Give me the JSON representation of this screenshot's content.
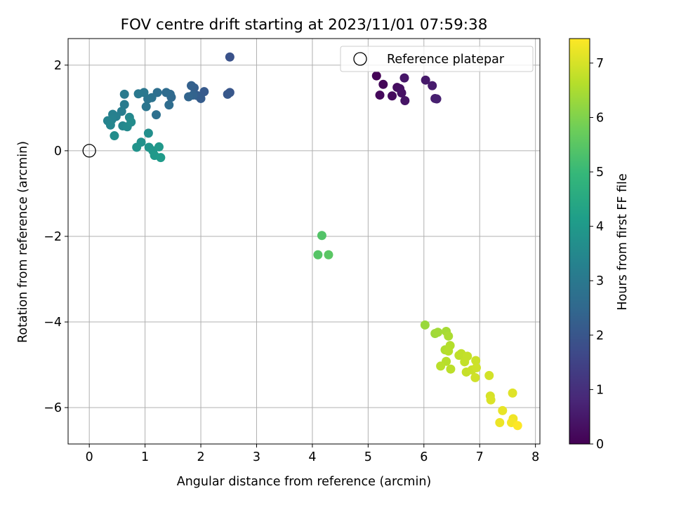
{
  "chart_data": {
    "type": "scatter",
    "title": "FOV centre drift starting at 2023/11/01 07:59:38",
    "xlabel": "Angular distance from reference (arcmin)",
    "ylabel": "Rotation from reference (arcmin)",
    "xlim": [
      -0.38,
      8.08
    ],
    "ylim": [
      -6.85,
      2.62
    ],
    "xticks": [
      0,
      1,
      2,
      3,
      4,
      5,
      6,
      7,
      8
    ],
    "yticks": [
      -6,
      -4,
      -2,
      0,
      2
    ],
    "grid": true,
    "legend": {
      "placement": "top-right",
      "entries": [
        "Reference platepar"
      ]
    },
    "reference_point": {
      "x": 0,
      "y": 0
    },
    "colorbar": {
      "label": "Hours from first FF file",
      "min": 0,
      "max": 7.45,
      "ticks": [
        0,
        1,
        2,
        3,
        4,
        5,
        6,
        7
      ],
      "colormap": [
        "#440154",
        "#482878",
        "#3e4989",
        "#31688e",
        "#26828e",
        "#1f9e89",
        "#35b779",
        "#6ece58",
        "#b5de2b",
        "#fde725"
      ]
    },
    "series": [
      {
        "points": [
          {
            "x": 5.15,
            "y": 1.75,
            "t": 0.05
          },
          {
            "x": 5.27,
            "y": 1.55,
            "t": 0.1
          },
          {
            "x": 5.21,
            "y": 1.3,
            "t": 0.15
          },
          {
            "x": 5.43,
            "y": 1.28,
            "t": 0.2
          },
          {
            "x": 5.52,
            "y": 1.48,
            "t": 0.25
          },
          {
            "x": 5.57,
            "y": 1.45,
            "t": 0.3
          },
          {
            "x": 5.6,
            "y": 1.35,
            "t": 0.35
          },
          {
            "x": 5.66,
            "y": 1.17,
            "t": 0.4
          },
          {
            "x": 5.65,
            "y": 1.7,
            "t": 0.45
          },
          {
            "x": 6.03,
            "y": 1.65,
            "t": 0.5
          },
          {
            "x": 6.15,
            "y": 1.52,
            "t": 0.55
          },
          {
            "x": 6.2,
            "y": 1.22,
            "t": 0.6
          },
          {
            "x": 6.23,
            "y": 1.21,
            "t": 0.65
          },
          {
            "x": 2.52,
            "y": 2.19,
            "t": 1.9
          },
          {
            "x": 2.52,
            "y": 1.36,
            "t": 2.0
          },
          {
            "x": 2.48,
            "y": 1.32,
            "t": 2.05
          },
          {
            "x": 2.06,
            "y": 1.38,
            "t": 2.1
          },
          {
            "x": 2.0,
            "y": 1.22,
            "t": 2.15
          },
          {
            "x": 1.93,
            "y": 1.29,
            "t": 2.2
          },
          {
            "x": 1.88,
            "y": 1.47,
            "t": 2.25
          },
          {
            "x": 1.83,
            "y": 1.52,
            "t": 2.3
          },
          {
            "x": 1.86,
            "y": 1.3,
            "t": 2.35
          },
          {
            "x": 1.78,
            "y": 1.26,
            "t": 2.4
          },
          {
            "x": 1.47,
            "y": 1.25,
            "t": 2.5
          },
          {
            "x": 1.45,
            "y": 1.32,
            "t": 2.55
          },
          {
            "x": 1.38,
            "y": 1.36,
            "t": 2.6
          },
          {
            "x": 1.43,
            "y": 1.07,
            "t": 2.65
          },
          {
            "x": 1.22,
            "y": 1.36,
            "t": 2.7
          },
          {
            "x": 1.2,
            "y": 0.84,
            "t": 2.75
          },
          {
            "x": 1.12,
            "y": 1.24,
            "t": 2.8
          },
          {
            "x": 1.05,
            "y": 1.21,
            "t": 2.85
          },
          {
            "x": 1.02,
            "y": 1.03,
            "t": 2.9
          },
          {
            "x": 0.98,
            "y": 1.36,
            "t": 2.95
          },
          {
            "x": 0.88,
            "y": 1.33,
            "t": 3.0
          },
          {
            "x": 0.63,
            "y": 1.32,
            "t": 3.05
          },
          {
            "x": 0.63,
            "y": 1.08,
            "t": 3.1
          },
          {
            "x": 0.58,
            "y": 0.92,
            "t": 3.15
          },
          {
            "x": 0.48,
            "y": 0.8,
            "t": 3.2
          },
          {
            "x": 0.42,
            "y": 0.85,
            "t": 3.25
          },
          {
            "x": 0.4,
            "y": 0.72,
            "t": 3.3
          },
          {
            "x": 0.33,
            "y": 0.7,
            "t": 3.35
          },
          {
            "x": 0.38,
            "y": 0.6,
            "t": 3.4
          },
          {
            "x": 0.6,
            "y": 0.58,
            "t": 3.45
          },
          {
            "x": 0.72,
            "y": 0.78,
            "t": 3.5
          },
          {
            "x": 0.68,
            "y": 0.56,
            "t": 3.55
          },
          {
            "x": 0.75,
            "y": 0.67,
            "t": 3.6
          },
          {
            "x": 0.45,
            "y": 0.35,
            "t": 3.65
          },
          {
            "x": 1.06,
            "y": 0.41,
            "t": 3.7
          },
          {
            "x": 0.93,
            "y": 0.2,
            "t": 3.75
          },
          {
            "x": 0.85,
            "y": 0.08,
            "t": 3.8
          },
          {
            "x": 1.07,
            "y": 0.08,
            "t": 3.85
          },
          {
            "x": 1.14,
            "y": 0.0,
            "t": 3.9
          },
          {
            "x": 1.25,
            "y": 0.09,
            "t": 3.95
          },
          {
            "x": 1.17,
            "y": -0.11,
            "t": 4.0
          },
          {
            "x": 1.28,
            "y": -0.16,
            "t": 4.05
          },
          {
            "x": 4.17,
            "y": -1.98,
            "t": 5.4
          },
          {
            "x": 4.1,
            "y": -2.43,
            "t": 5.45
          },
          {
            "x": 4.29,
            "y": -2.43,
            "t": 5.5
          },
          {
            "x": 6.02,
            "y": -4.07,
            "t": 6.3
          },
          {
            "x": 6.2,
            "y": -4.27,
            "t": 6.35
          },
          {
            "x": 6.25,
            "y": -4.24,
            "t": 6.4
          },
          {
            "x": 6.4,
            "y": -4.22,
            "t": 6.45
          },
          {
            "x": 6.44,
            "y": -4.33,
            "t": 6.5
          },
          {
            "x": 6.38,
            "y": -4.65,
            "t": 6.55
          },
          {
            "x": 6.47,
            "y": -4.55,
            "t": 6.6
          },
          {
            "x": 6.44,
            "y": -4.68,
            "t": 6.62
          },
          {
            "x": 6.4,
            "y": -4.92,
            "t": 6.65
          },
          {
            "x": 6.3,
            "y": -5.03,
            "t": 6.68
          },
          {
            "x": 6.48,
            "y": -5.1,
            "t": 6.7
          },
          {
            "x": 6.63,
            "y": -4.78,
            "t": 6.72
          },
          {
            "x": 6.67,
            "y": -4.74,
            "t": 6.75
          },
          {
            "x": 6.73,
            "y": -4.93,
            "t": 6.78
          },
          {
            "x": 6.78,
            "y": -4.8,
            "t": 6.8
          },
          {
            "x": 6.76,
            "y": -5.17,
            "t": 6.82
          },
          {
            "x": 6.86,
            "y": -5.12,
            "t": 6.85
          },
          {
            "x": 6.93,
            "y": -4.9,
            "t": 6.88
          },
          {
            "x": 6.94,
            "y": -5.07,
            "t": 6.9
          },
          {
            "x": 6.92,
            "y": -5.3,
            "t": 6.92
          },
          {
            "x": 7.17,
            "y": -5.25,
            "t": 6.95
          },
          {
            "x": 7.19,
            "y": -5.73,
            "t": 7.0
          },
          {
            "x": 7.2,
            "y": -5.82,
            "t": 7.05
          },
          {
            "x": 7.59,
            "y": -5.66,
            "t": 7.1
          },
          {
            "x": 7.41,
            "y": -6.07,
            "t": 7.2
          },
          {
            "x": 7.36,
            "y": -6.35,
            "t": 7.25
          },
          {
            "x": 7.6,
            "y": -6.26,
            "t": 7.3
          },
          {
            "x": 7.57,
            "y": -6.35,
            "t": 7.35
          },
          {
            "x": 7.68,
            "y": -6.42,
            "t": 7.45
          }
        ]
      }
    ]
  }
}
